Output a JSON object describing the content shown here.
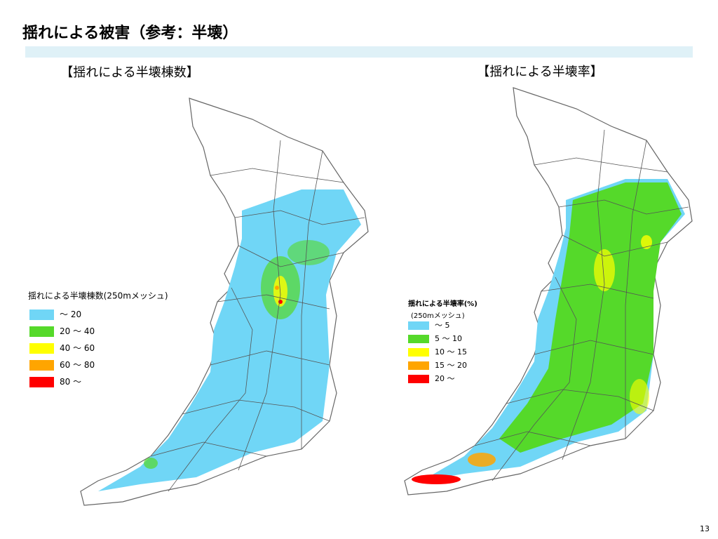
{
  "header": {
    "title": "揺れによる被害（参考：半壊）"
  },
  "maps": [
    {
      "title": "【揺れによる半壊棟数】",
      "legend": {
        "title": "揺れによる半壊棟数(250mメッシュ)",
        "items": [
          {
            "label": "～ 20",
            "color": "#70d6f6"
          },
          {
            "label": "20 ～ 40",
            "color": "#55d92a"
          },
          {
            "label": "40 ～ 60",
            "color": "#ffff00"
          },
          {
            "label": "60 ～ 80",
            "color": "#ffa500"
          },
          {
            "label": "80 ～",
            "color": "#ff0000"
          }
        ]
      }
    },
    {
      "title": "【揺れによる半壊率】",
      "legend": {
        "title": "揺れによる半壊率(%)",
        "subtitle": "(250mメッシュ)",
        "items": [
          {
            "label": "～ 5",
            "color": "#70d6f6"
          },
          {
            "label": "5 ～ 10",
            "color": "#55d92a"
          },
          {
            "label": "10 ～ 15",
            "color": "#ffff00"
          },
          {
            "label": "15 ～ 20",
            "color": "#ffa500"
          },
          {
            "label": "20 ～",
            "color": "#ff0000"
          }
        ]
      }
    }
  ],
  "footer": {
    "page": "13"
  }
}
